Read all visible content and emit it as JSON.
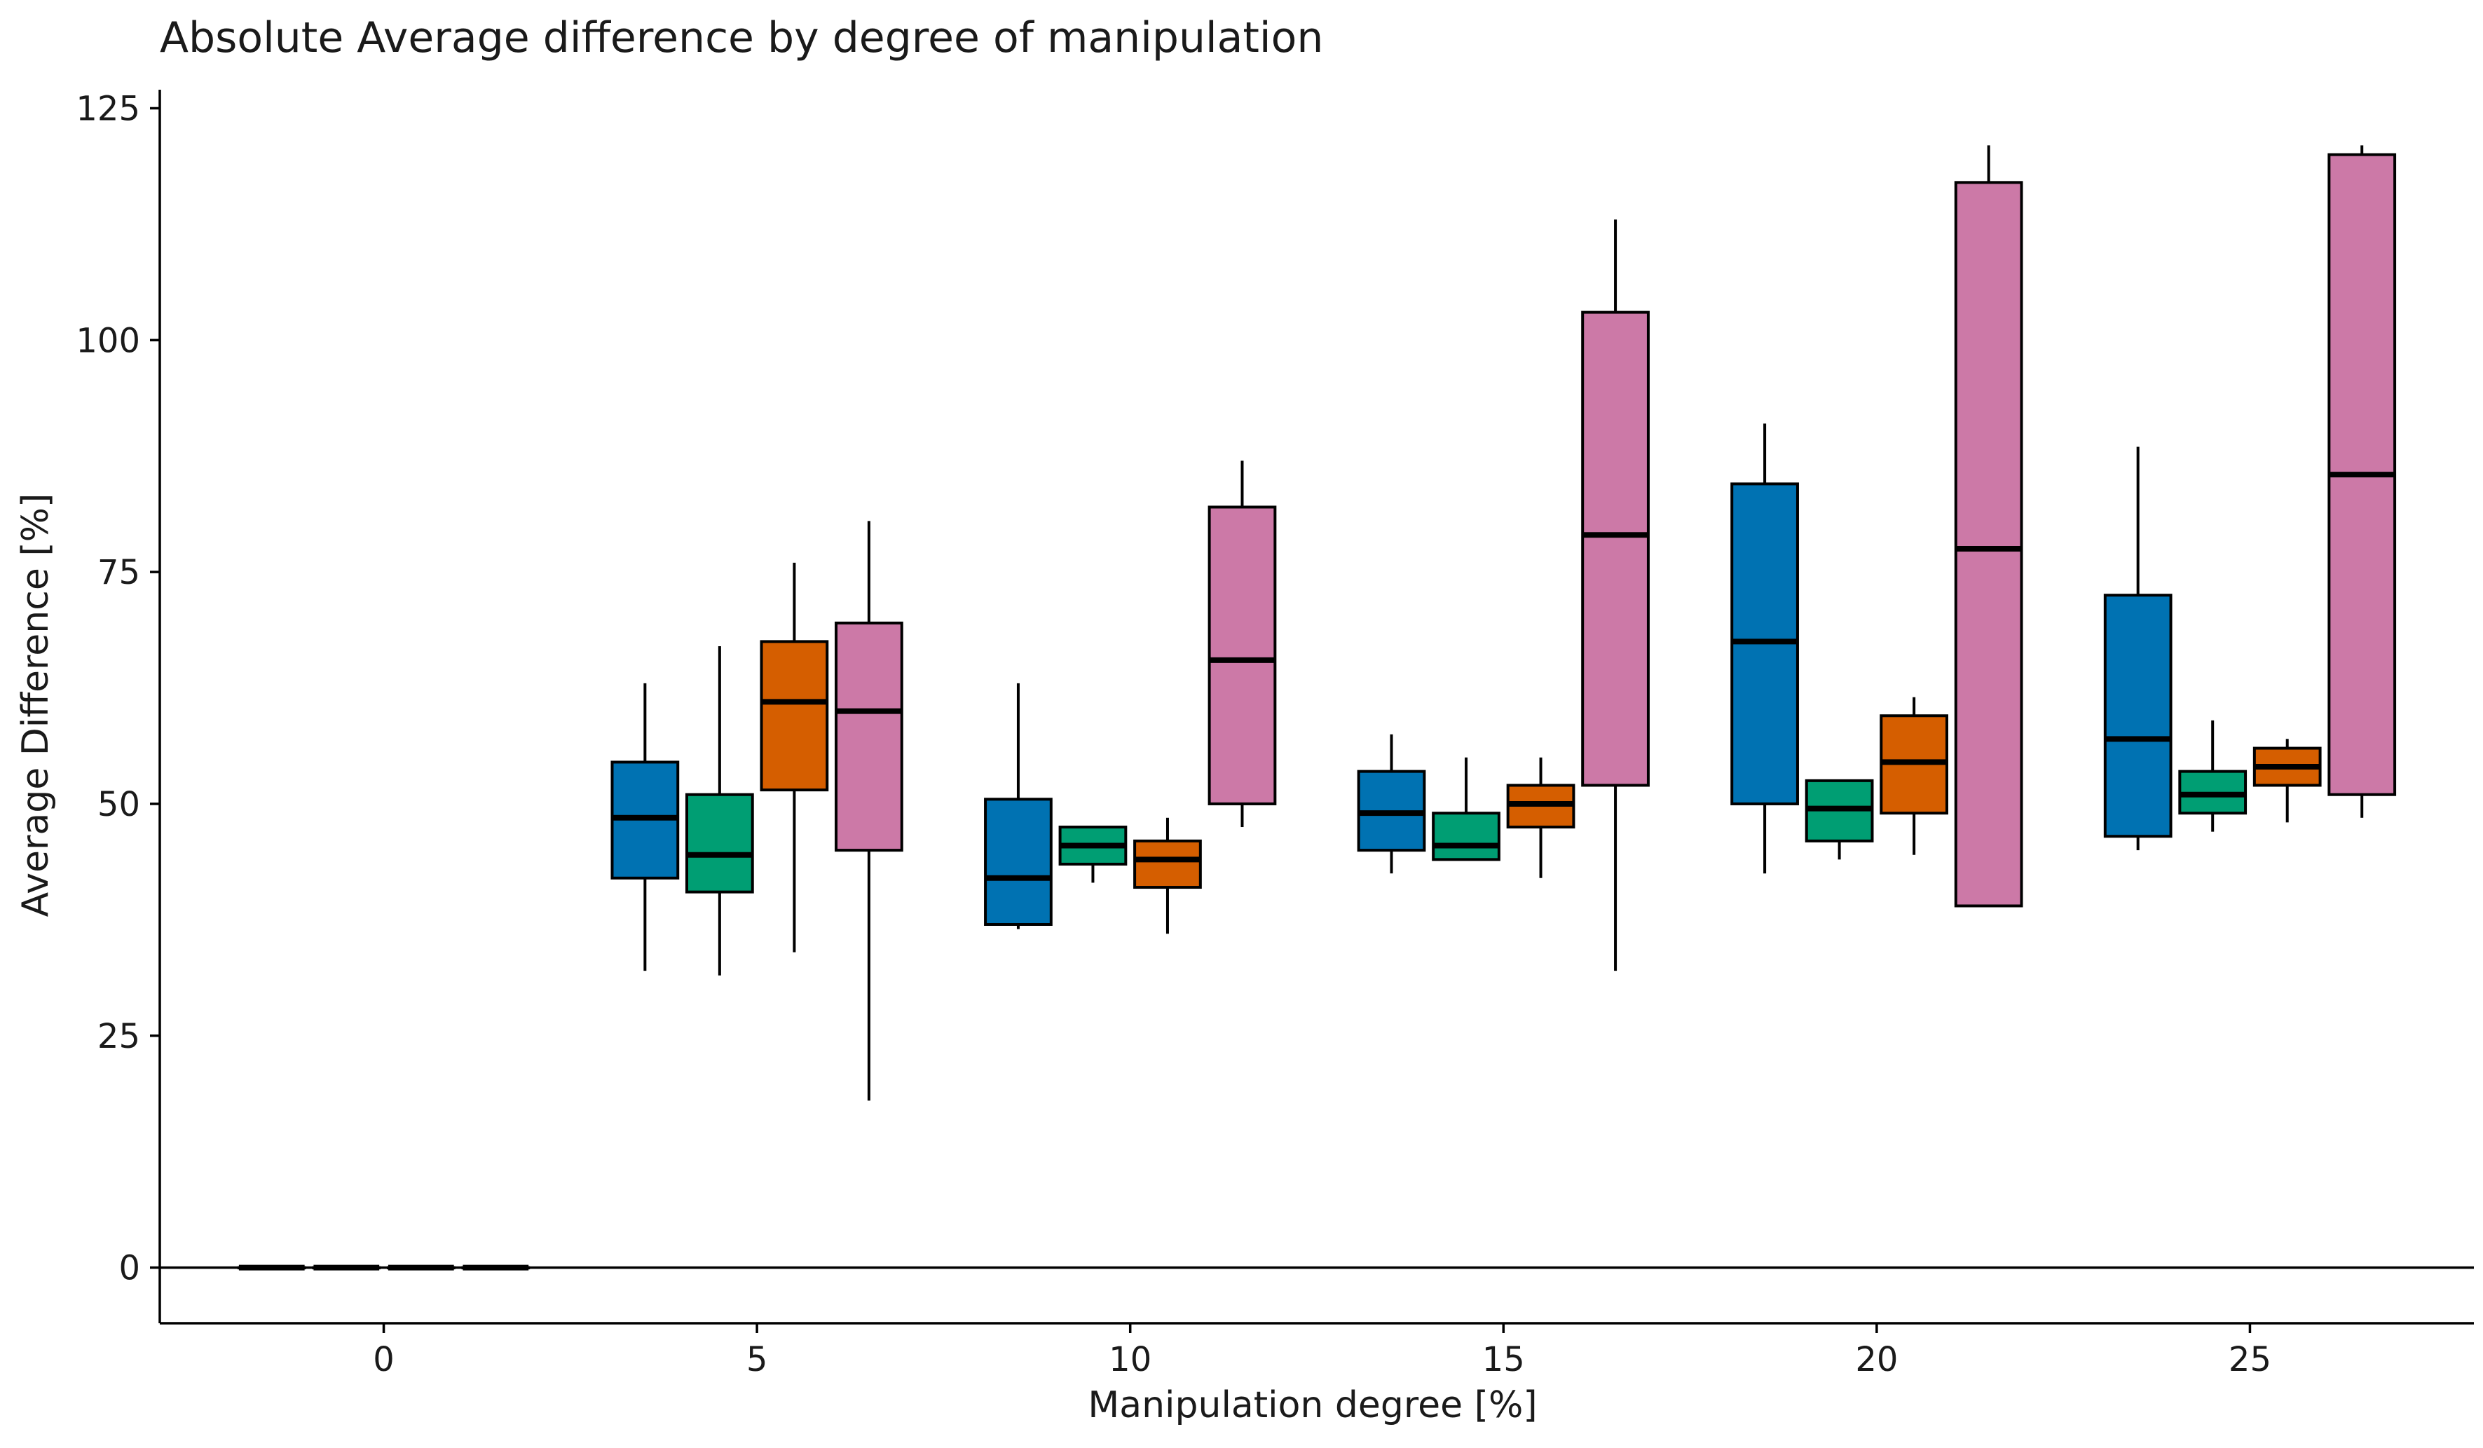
{
  "chart_data": {
    "type": "boxplot",
    "title": "Absolute Average difference by degree of manipulation",
    "xlabel": "Manipulation degree [%]",
    "ylabel": "Average Difference [%]",
    "x_ticks": [
      0,
      5,
      10,
      15,
      20,
      25
    ],
    "y_ticks": [
      0,
      25,
      50,
      75,
      100,
      125
    ],
    "xlim": [
      -3,
      28
    ],
    "ylim": [
      -6,
      127
    ],
    "reference_line_y": 0,
    "grid": false,
    "legend": "none",
    "series_colors": [
      "#0072B2",
      "#009E73",
      "#D55E00",
      "#CC79A7"
    ],
    "groups": [
      {
        "x": 0,
        "boxes": [
          {
            "series": 0,
            "min": 0,
            "q1": 0,
            "median": 0,
            "q3": 0,
            "max": 0
          },
          {
            "series": 1,
            "min": 0,
            "q1": 0,
            "median": 0,
            "q3": 0,
            "max": 0
          },
          {
            "series": 2,
            "min": 0,
            "q1": 0,
            "median": 0,
            "q3": 0,
            "max": 0
          },
          {
            "series": 3,
            "min": 0,
            "q1": 0,
            "median": 0,
            "q3": 0,
            "max": 0
          }
        ]
      },
      {
        "x": 5,
        "boxes": [
          {
            "series": 0,
            "min": 32,
            "q1": 42,
            "median": 48.5,
            "q3": 54.5,
            "max": 63
          },
          {
            "series": 1,
            "min": 31.5,
            "q1": 40.5,
            "median": 44.5,
            "q3": 51,
            "max": 67
          },
          {
            "series": 2,
            "min": 34,
            "q1": 51.5,
            "median": 61,
            "q3": 67.5,
            "max": 76
          },
          {
            "series": 3,
            "min": 18,
            "q1": 45,
            "median": 60,
            "q3": 69.5,
            "max": 80.5
          }
        ]
      },
      {
        "x": 10,
        "boxes": [
          {
            "series": 0,
            "min": 36.5,
            "q1": 37,
            "median": 42,
            "q3": 50.5,
            "max": 63
          },
          {
            "series": 1,
            "min": 41.5,
            "q1": 43.5,
            "median": 45.5,
            "q3": 47.5,
            "max": 47.5
          },
          {
            "series": 2,
            "min": 36,
            "q1": 41,
            "median": 44,
            "q3": 46,
            "max": 48.5
          },
          {
            "series": 3,
            "min": 47.5,
            "q1": 50,
            "median": 65.5,
            "q3": 82,
            "max": 87
          }
        ]
      },
      {
        "x": 15,
        "boxes": [
          {
            "series": 0,
            "min": 42.5,
            "q1": 45,
            "median": 49,
            "q3": 53.5,
            "max": 57.5
          },
          {
            "series": 1,
            "min": 44,
            "q1": 44,
            "median": 45.5,
            "q3": 49,
            "max": 55
          },
          {
            "series": 2,
            "min": 42,
            "q1": 47.5,
            "median": 50,
            "q3": 52,
            "max": 55
          },
          {
            "series": 3,
            "min": 32,
            "q1": 52,
            "median": 79,
            "q3": 103,
            "max": 113
          }
        ]
      },
      {
        "x": 20,
        "boxes": [
          {
            "series": 0,
            "min": 42.5,
            "q1": 50,
            "median": 67.5,
            "q3": 84.5,
            "max": 91
          },
          {
            "series": 1,
            "min": 44,
            "q1": 46,
            "median": 49.5,
            "q3": 52.5,
            "max": 52.5
          },
          {
            "series": 2,
            "min": 44.5,
            "q1": 49,
            "median": 54.5,
            "q3": 59.5,
            "max": 61.5
          },
          {
            "series": 3,
            "min": 39,
            "q1": 39,
            "median": 77.5,
            "q3": 117,
            "max": 121
          }
        ]
      },
      {
        "x": 25,
        "boxes": [
          {
            "series": 0,
            "min": 45,
            "q1": 46.5,
            "median": 57,
            "q3": 72.5,
            "max": 88.5
          },
          {
            "series": 1,
            "min": 47,
            "q1": 49,
            "median": 51,
            "q3": 53.5,
            "max": 59
          },
          {
            "series": 2,
            "min": 48,
            "q1": 52,
            "median": 54,
            "q3": 56,
            "max": 57
          },
          {
            "series": 3,
            "min": 48.5,
            "q1": 51,
            "median": 85.5,
            "q3": 120,
            "max": 121
          }
        ]
      }
    ]
  }
}
